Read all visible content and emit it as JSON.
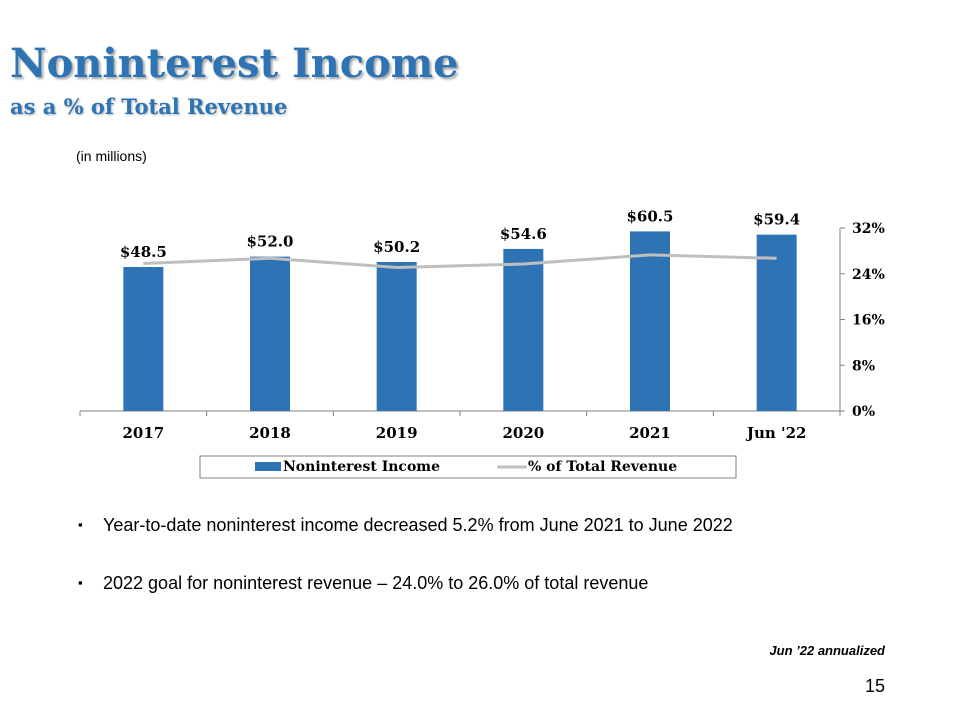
{
  "header": {
    "title": "Noninterest Income",
    "subtitle": "as a % of Total Revenue",
    "units": "(in millions)"
  },
  "chart_data": {
    "type": "bar",
    "categories": [
      "2017",
      "2018",
      "2019",
      "2020",
      "2021",
      "Jun '22"
    ],
    "series": [
      {
        "name": "Noninterest Income",
        "type": "bar",
        "axis": "left",
        "values": [
          48.5,
          52.0,
          50.2,
          54.6,
          60.5,
          59.4
        ],
        "labels": [
          "$48.5",
          "$52.0",
          "$50.2",
          "$54.6",
          "$60.5",
          "$59.4"
        ],
        "color": "#2e74b5"
      },
      {
        "name": "% of Total Revenue",
        "type": "line",
        "axis": "right",
        "values": [
          25.8,
          26.7,
          25.1,
          25.7,
          27.3,
          26.7
        ],
        "color": "#bfbfbf"
      }
    ],
    "y2_ticks": [
      "0%",
      "8%",
      "16%",
      "24%",
      "32%"
    ],
    "y2lim": [
      0,
      32
    ],
    "grid": false,
    "legend_position": "bottom"
  },
  "bullets": [
    "Year-to-date noninterest income decreased 5.2% from June 2021 to June 2022",
    "2022 goal for noninterest revenue – 24.0% to 26.0% of total revenue"
  ],
  "bullet_symbol": "▪",
  "footnote": "Jun ’22 annualized",
  "page_number": "15"
}
